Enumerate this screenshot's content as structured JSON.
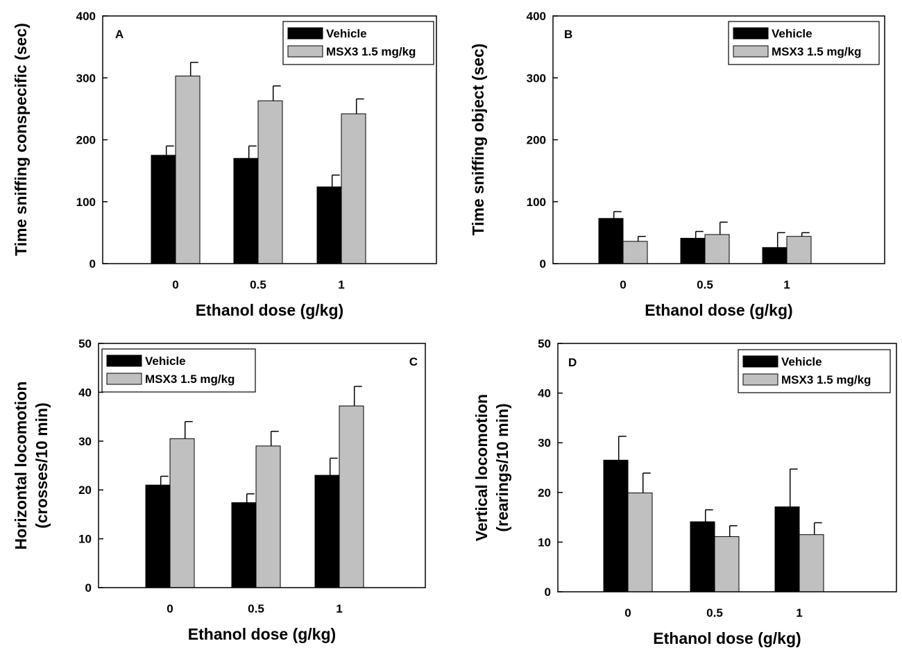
{
  "figure": {
    "panels": [
      "A",
      "B",
      "C",
      "D"
    ],
    "colors": {
      "vehicle": "#000000",
      "msx3": "#c0c0c0",
      "axis": "#000000"
    }
  },
  "chart_data": [
    {
      "id": "A",
      "type": "bar",
      "label": "A",
      "xlabel": "Ethanol  dose (g/kg)",
      "ylabel": "Time sniffing conspecific (sec)",
      "ylabel_lines": [
        "Time sniffing conspecific (sec)"
      ],
      "ylim": [
        0,
        400
      ],
      "yticks": [
        0,
        100,
        200,
        300,
        400
      ],
      "categories": [
        "0",
        "0.5",
        "1"
      ],
      "series": [
        {
          "name": "Vehicle",
          "color": "#000000",
          "values": [
            175,
            170,
            124
          ],
          "errors": [
            15,
            20,
            19
          ]
        },
        {
          "name": "MSX3 1.5 mg/kg",
          "color": "#c0c0c0",
          "values": [
            303,
            263,
            242
          ],
          "errors": [
            22,
            24,
            24
          ]
        }
      ],
      "legend_position": "top-right"
    },
    {
      "id": "B",
      "type": "bar",
      "label": "B",
      "xlabel": "Ethanol  dose (g/kg)",
      "ylabel": "Time sniffing object (sec)",
      "ylabel_lines": [
        "Time sniffing object (sec)"
      ],
      "ylim": [
        0,
        400
      ],
      "yticks": [
        0,
        100,
        200,
        300,
        400
      ],
      "categories": [
        "0",
        "0.5",
        "1"
      ],
      "series": [
        {
          "name": "Vehicle",
          "color": "#000000",
          "values": [
            73,
            41,
            26
          ],
          "errors": [
            11,
            11,
            24
          ]
        },
        {
          "name": " MSX3 1.5 mg/kg",
          "color": "#c0c0c0",
          "values": [
            36,
            47,
            44
          ],
          "errors": [
            8,
            20,
            6
          ]
        }
      ],
      "legend_position": "top-right"
    },
    {
      "id": "C",
      "type": "bar",
      "label": "C",
      "xlabel": "Ethanol  dose (g/kg)",
      "ylabel": "Horizontal locomotion (crosses/10 min)",
      "ylabel_lines": [
        "Horizontal locomotion",
        "(crosses/10 min)"
      ],
      "ylim": [
        0,
        50
      ],
      "yticks": [
        0,
        10,
        20,
        30,
        40,
        50
      ],
      "categories": [
        "0",
        "0.5",
        "1"
      ],
      "series": [
        {
          "name": "Vehicle",
          "color": "#000000",
          "values": [
            21,
            17.4,
            23
          ],
          "errors": [
            1.8,
            1.8,
            3.5
          ]
        },
        {
          "name": "MSX3 1.5 mg/kg",
          "color": "#c0c0c0",
          "values": [
            30.5,
            29,
            37.2
          ],
          "errors": [
            3.5,
            3,
            4
          ]
        }
      ],
      "legend_position": "top-left"
    },
    {
      "id": "D",
      "type": "bar",
      "label": "D",
      "xlabel": "Ethanol  dose (g/kg)",
      "ylabel": "Vertical locomotion (rearings/10 min)",
      "ylabel_lines": [
        "Vertical locomotion",
        "(rearings/10 min)"
      ],
      "ylim": [
        0,
        50
      ],
      "yticks": [
        0,
        10,
        20,
        30,
        40,
        50
      ],
      "categories": [
        "0",
        "0.5",
        "1"
      ],
      "series": [
        {
          "name": "Vehicle",
          "color": "#000000",
          "values": [
            26.5,
            14.1,
            17.1
          ],
          "errors": [
            4.8,
            2.4,
            7.6
          ]
        },
        {
          "name": "MSX3 1.5 mg/kg",
          "color": "#c0c0c0",
          "values": [
            19.9,
            11.1,
            11.5
          ],
          "errors": [
            4,
            2.2,
            2.4
          ]
        }
      ],
      "legend_position": "top-right"
    }
  ]
}
